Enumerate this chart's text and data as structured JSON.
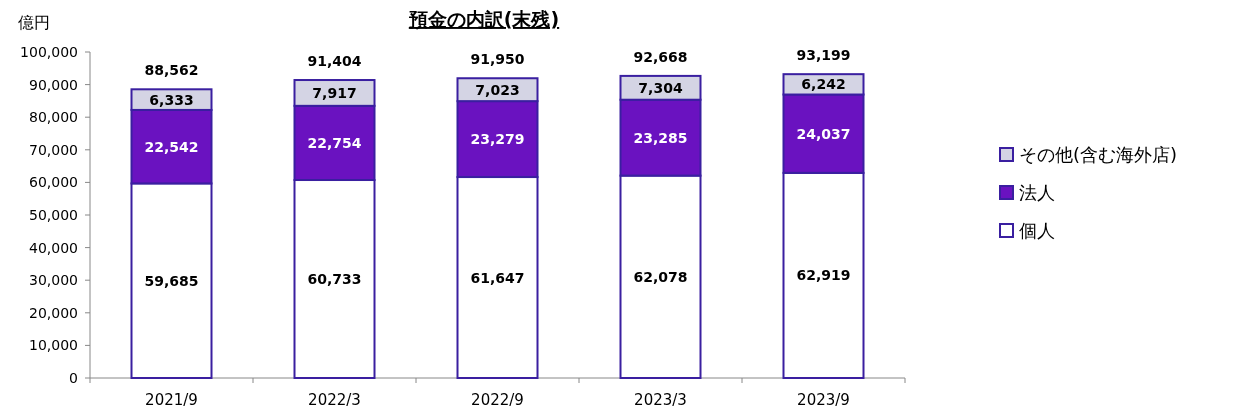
{
  "chart_data": {
    "type": "bar",
    "title": "預金の内訳(末残)",
    "ylabel": "億円",
    "categories": [
      "2021/9",
      "2022/3",
      "2022/9",
      "2023/3",
      "2023/9"
    ],
    "stacked": true,
    "series": [
      {
        "name": "個人",
        "color": "#ffffff",
        "values": [
          59685,
          60733,
          61647,
          62078,
          62919
        ],
        "value_labels": [
          "59,685",
          "60,733",
          "61,647",
          "62,078",
          "62,919"
        ]
      },
      {
        "name": "法人",
        "color": "#6a12c0",
        "values": [
          22542,
          22754,
          23279,
          23285,
          24037
        ],
        "value_labels": [
          "22,542",
          "22,754",
          "23,279",
          "23,285",
          "24,037"
        ]
      },
      {
        "name": "その他(含む海外店)",
        "color": "#d4d4e4",
        "values": [
          6333,
          7917,
          7023,
          7304,
          6242
        ],
        "value_labels": [
          "6,333",
          "7,917",
          "7,023",
          "7,304",
          "6,242"
        ]
      }
    ],
    "totals": [
      "88,562",
      "91,404",
      "91,950",
      "92,668",
      "93,199"
    ],
    "ylim": [
      0,
      100000
    ],
    "yticks": [
      0,
      {
        "value": 10000,
        "label": "10,000"
      },
      {
        "value": 20000,
        "label": "20,000"
      },
      {
        "value": 30000,
        "label": "30,000"
      },
      {
        "value": 40000,
        "label": "40,000"
      },
      {
        "value": 50000,
        "label": "50,000"
      },
      {
        "value": 60000,
        "label": "60,000"
      },
      {
        "value": 70000,
        "label": "70,000"
      },
      {
        "value": 80000,
        "label": "80,000"
      },
      {
        "value": 90000,
        "label": "90,000"
      },
      {
        "value": 100000,
        "label": "100,000"
      }
    ],
    "grid": false,
    "legend": "right"
  }
}
